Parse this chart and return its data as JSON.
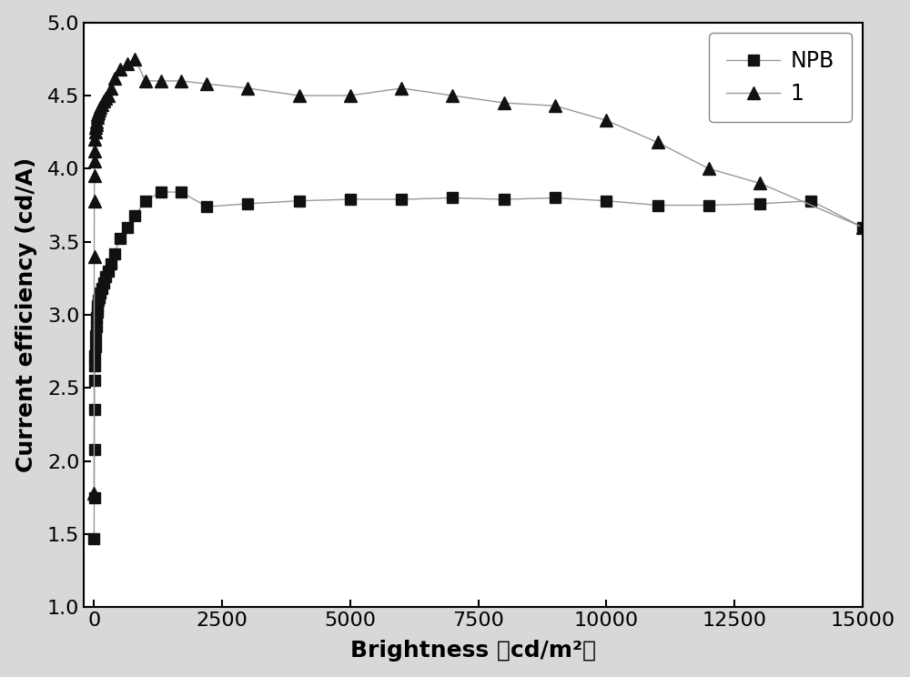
{
  "npb_x": [
    0,
    2,
    4,
    6,
    8,
    10,
    15,
    20,
    30,
    40,
    50,
    60,
    70,
    80,
    100,
    120,
    150,
    180,
    220,
    270,
    330,
    400,
    500,
    650,
    800,
    1000,
    1300,
    1700,
    2200,
    3000,
    4000,
    5000,
    6000,
    7000,
    8000,
    9000,
    10000,
    11000,
    12000,
    13000,
    14000,
    15000
  ],
  "npb_y": [
    1.47,
    1.75,
    2.08,
    2.35,
    2.55,
    2.65,
    2.72,
    2.78,
    2.86,
    2.92,
    2.98,
    3.02,
    3.06,
    3.1,
    3.12,
    3.15,
    3.18,
    3.22,
    3.26,
    3.3,
    3.35,
    3.42,
    3.52,
    3.6,
    3.68,
    3.78,
    3.84,
    3.84,
    3.74,
    3.76,
    3.78,
    3.79,
    3.79,
    3.8,
    3.79,
    3.8,
    3.78,
    3.75,
    3.75,
    3.76,
    3.78,
    3.6
  ],
  "comp1_x": [
    0,
    2,
    4,
    6,
    8,
    10,
    15,
    20,
    30,
    40,
    50,
    60,
    70,
    80,
    100,
    120,
    150,
    180,
    220,
    270,
    330,
    400,
    500,
    650,
    800,
    1000,
    1300,
    1700,
    2200,
    3000,
    4000,
    5000,
    6000,
    7000,
    8000,
    9000,
    10000,
    11000,
    12000,
    13000,
    15000
  ],
  "comp1_y": [
    1.78,
    3.4,
    3.78,
    3.95,
    4.05,
    4.12,
    4.2,
    4.25,
    4.28,
    4.3,
    4.32,
    4.35,
    4.37,
    4.38,
    4.4,
    4.42,
    4.44,
    4.46,
    4.48,
    4.5,
    4.55,
    4.62,
    4.68,
    4.72,
    4.75,
    4.6,
    4.6,
    4.6,
    4.58,
    4.55,
    4.5,
    4.5,
    4.55,
    4.5,
    4.45,
    4.43,
    4.33,
    4.18,
    4.0,
    3.9,
    3.6
  ],
  "line_color": "#999999",
  "marker_color": "#111111",
  "bg_color": "#d8d8d8",
  "plot_bg_color": "#ffffff",
  "xlim": [
    -200,
    15000
  ],
  "ylim": [
    1.0,
    5.0
  ],
  "xlabel": "Brightness （cd/m²）",
  "ylabel": "Current efficiency (cd/A)",
  "xticks": [
    0,
    2500,
    5000,
    7500,
    10000,
    12500,
    15000
  ],
  "yticks": [
    1.0,
    1.5,
    2.0,
    2.5,
    3.0,
    3.5,
    4.0,
    4.5,
    5.0
  ],
  "legend_labels": [
    "NPB",
    "1"
  ],
  "label_fontsize": 18,
  "tick_fontsize": 16,
  "legend_fontsize": 17
}
